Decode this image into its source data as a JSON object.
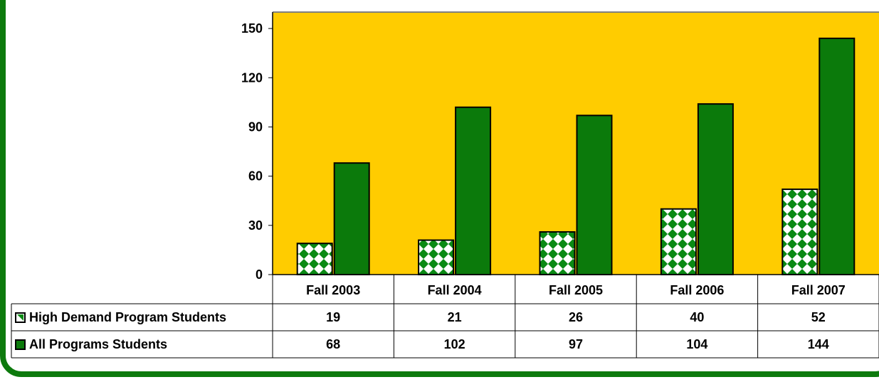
{
  "chart_data": {
    "type": "bar",
    "categories": [
      "Fall 2003",
      "Fall 2004",
      "Fall 2005",
      "Fall 2006",
      "Fall 2007"
    ],
    "series": [
      {
        "name": "High Demand Program Students",
        "values": [
          19,
          21,
          26,
          40,
          52
        ],
        "pattern": "checker",
        "color": "#0a8a14"
      },
      {
        "name": "All Programs Students",
        "values": [
          68,
          102,
          97,
          104,
          144
        ],
        "pattern": "solid",
        "color": "#0b7a0b"
      }
    ],
    "yticks": [
      0,
      30,
      60,
      90,
      120,
      150
    ],
    "ylim": [
      0,
      160
    ],
    "plot_background": "#ffcc00",
    "data_table": true,
    "title": "",
    "xlabel": "",
    "ylabel": ""
  }
}
